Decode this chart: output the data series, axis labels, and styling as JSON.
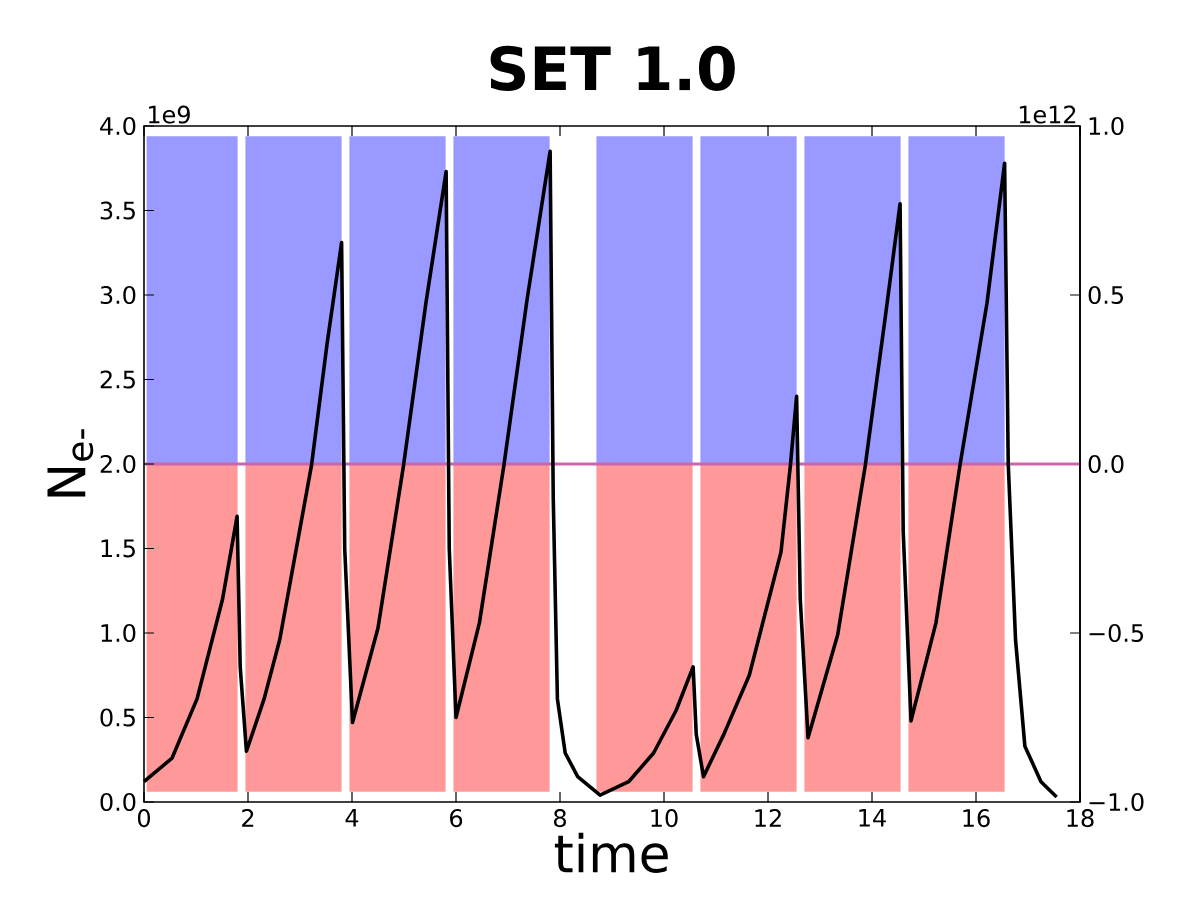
{
  "chart_data": {
    "type": "line",
    "title": "SET 1.0",
    "xlabel": "time",
    "ylabel": "N$_{e-}$",
    "xlim": [
      0,
      18
    ],
    "xticks": [
      0,
      2,
      4,
      6,
      8,
      10,
      12,
      14,
      16,
      18
    ],
    "ylim": [
      0,
      4
    ],
    "yticks": [
      {
        "value": 0,
        "label": "0.0"
      },
      0.5,
      {
        "value": 1,
        "label": "1.0"
      },
      1.5,
      {
        "value": 2,
        "label": "2.0"
      },
      2.5,
      {
        "value": 3,
        "label": "3.0"
      },
      3.5,
      {
        "value": 4,
        "label": "4.0"
      }
    ],
    "y2lim": [
      -1,
      1
    ],
    "y2ticks": [
      {
        "value": -1,
        "label": "−1.0"
      },
      {
        "value": -0.5,
        "label": "−0.5"
      },
      {
        "value": 0,
        "label": "0.0"
      },
      0.5,
      {
        "value": 1,
        "label": "1.0"
      }
    ],
    "annotations": [
      "1e9",
      "1e12"
    ],
    "ref_lines": [
      {
        "axis": "y2",
        "value": 0,
        "color": "#cc66aa"
      }
    ],
    "series": [
      {
        "type": "area",
        "axis": "y2",
        "color": "#9999ff",
        "x": [
          0.05,
          1.8,
          1.87,
          1.95,
          3.8,
          3.87,
          3.95,
          5.8,
          5.87,
          5.95,
          7.8,
          8.25,
          8.7,
          10.55,
          10.62,
          10.7,
          12.55,
          12.62,
          12.7,
          14.55,
          14.62,
          14.7,
          16.55
        ],
        "values": [
          0.97,
          0.97,
          null,
          0.97,
          0.97,
          null,
          0.97,
          0.97,
          null,
          0.97,
          0.97,
          null,
          0.97,
          0.97,
          null,
          0.97,
          0.97,
          null,
          0.97,
          0.97,
          null,
          0.97,
          0.97
        ]
      },
      {
        "type": "area",
        "axis": "y2",
        "color": "#ff9999",
        "x": [
          0.05,
          1.8,
          1.87,
          1.95,
          3.8,
          3.87,
          3.95,
          5.8,
          5.87,
          5.95,
          7.8,
          8.25,
          8.7,
          10.55,
          10.62,
          10.7,
          12.55,
          12.62,
          12.7,
          14.55,
          14.62,
          14.7,
          16.55
        ],
        "values": [
          -0.97,
          -0.97,
          null,
          -0.97,
          -0.97,
          null,
          -0.97,
          -0.97,
          null,
          -0.97,
          -0.97,
          null,
          -0.97,
          -0.97,
          null,
          -0.97,
          -0.97,
          null,
          -0.97,
          -0.97,
          null,
          -0.97,
          -0.97
        ]
      },
      {
        "color": "#000000",
        "x": [
          0,
          0.54,
          1.02,
          1.51,
          1.79,
          1.85,
          1.97,
          2.31,
          2.61,
          3.22,
          3.52,
          3.8,
          3.86,
          4.01,
          4.5,
          4.99,
          5.42,
          5.81,
          5.87,
          6.0,
          6.45,
          6.92,
          7.37,
          7.81,
          7.87,
          7.95,
          8.1,
          8.34,
          8.77,
          9.32,
          9.8,
          10.23,
          10.56,
          10.62,
          10.76,
          11.15,
          11.64,
          12.25,
          12.43,
          12.55,
          12.62,
          12.77,
          13.34,
          13.87,
          14.26,
          14.54,
          14.6,
          14.75,
          15.23,
          15.69,
          16.21,
          16.55,
          16.62,
          16.76,
          16.94,
          17.25,
          17.55
        ],
        "values": [
          0.12,
          0.26,
          0.61,
          1.2,
          1.69,
          0.8,
          0.3,
          0.61,
          0.96,
          1.99,
          2.71,
          3.31,
          1.5,
          0.47,
          1.03,
          1.99,
          2.95,
          3.73,
          1.5,
          0.5,
          1.06,
          1.99,
          2.98,
          3.85,
          1.8,
          0.61,
          0.29,
          0.15,
          0.04,
          0.12,
          0.29,
          0.54,
          0.8,
          0.4,
          0.15,
          0.4,
          0.75,
          1.48,
          1.99,
          2.4,
          1.2,
          0.38,
          0.99,
          1.99,
          2.88,
          3.54,
          1.6,
          0.48,
          1.06,
          1.99,
          2.95,
          3.78,
          2.0,
          0.96,
          0.33,
          0.12,
          0.03
        ]
      }
    ]
  }
}
